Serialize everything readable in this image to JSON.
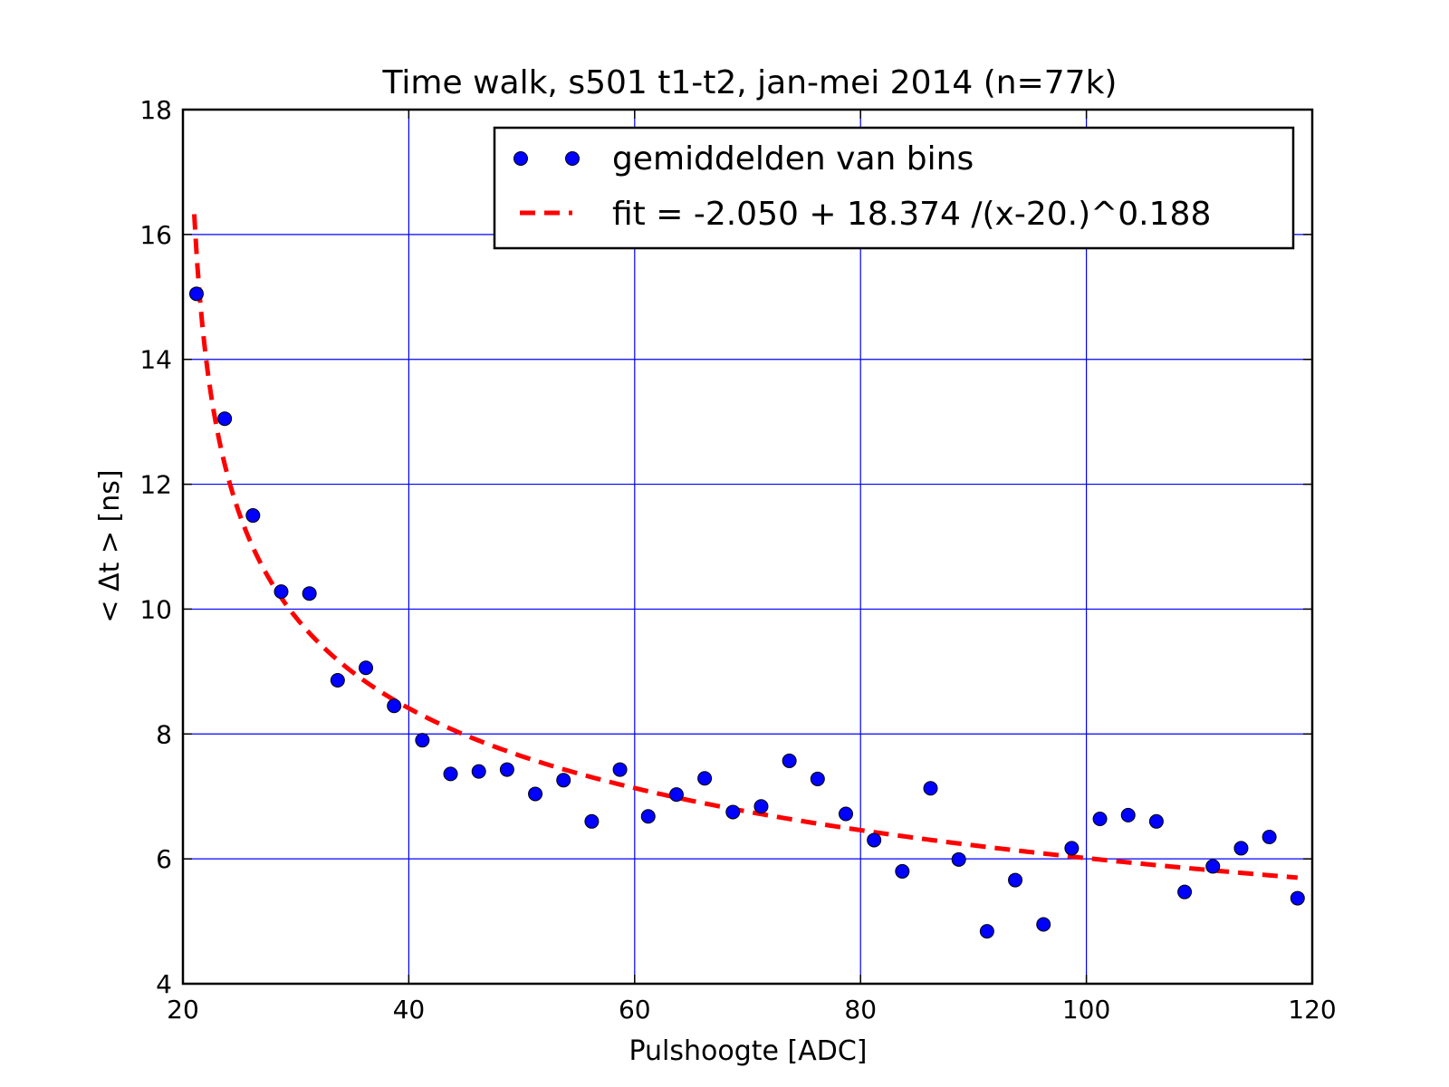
{
  "chart_data": {
    "type": "scatter",
    "title": "Time walk, s501 t1-t2, jan-mei 2014 (n=77k)",
    "xlabel": "Pulshoogte [ADC]",
    "ylabel": "< Δt > [ns]",
    "xlim": [
      20,
      120
    ],
    "ylim": [
      4,
      18
    ],
    "xticks": [
      "20",
      "40",
      "60",
      "80",
      "100",
      "120"
    ],
    "yticks": [
      "4",
      "6",
      "8",
      "10",
      "12",
      "14",
      "16",
      "18"
    ],
    "grid": true,
    "legend_position": "top-right",
    "series": [
      {
        "name": "gemiddelden van bins",
        "kind": "points",
        "color": "#0000ff",
        "points": [
          [
            21.2,
            15.05
          ],
          [
            23.7,
            13.05
          ],
          [
            26.2,
            11.5
          ],
          [
            28.7,
            10.28
          ],
          [
            31.2,
            10.25
          ],
          [
            33.7,
            8.86
          ],
          [
            36.2,
            9.06
          ],
          [
            38.7,
            8.45
          ],
          [
            41.2,
            7.9
          ],
          [
            43.7,
            7.36
          ],
          [
            46.2,
            7.4
          ],
          [
            48.7,
            7.43
          ],
          [
            51.2,
            7.04
          ],
          [
            53.7,
            7.26
          ],
          [
            56.2,
            6.6
          ],
          [
            58.7,
            7.43
          ],
          [
            61.2,
            6.68
          ],
          [
            63.7,
            7.03
          ],
          [
            66.2,
            7.29
          ],
          [
            68.7,
            6.75
          ],
          [
            71.2,
            6.84
          ],
          [
            73.7,
            7.57
          ],
          [
            76.2,
            7.28
          ],
          [
            78.7,
            6.72
          ],
          [
            81.2,
            6.3
          ],
          [
            83.7,
            5.8
          ],
          [
            86.2,
            7.13
          ],
          [
            88.7,
            5.99
          ],
          [
            91.2,
            4.84
          ],
          [
            93.7,
            5.66
          ],
          [
            96.2,
            4.95
          ],
          [
            98.7,
            6.17
          ],
          [
            101.2,
            6.64
          ],
          [
            103.7,
            6.7
          ],
          [
            106.2,
            6.6
          ],
          [
            108.7,
            5.47
          ],
          [
            111.2,
            5.88
          ],
          [
            113.7,
            6.17
          ],
          [
            116.2,
            6.35
          ],
          [
            118.7,
            5.37
          ]
        ]
      },
      {
        "name": "fit = -2.050 + 18.374 /(x-20.)^0.188",
        "kind": "dashed-line",
        "color": "#ff0000",
        "fit": {
          "a": -2.05,
          "b": 18.374,
          "x0": 20.0,
          "p": 0.188,
          "x_start": 21.0,
          "x_end": 118.7
        }
      }
    ]
  }
}
